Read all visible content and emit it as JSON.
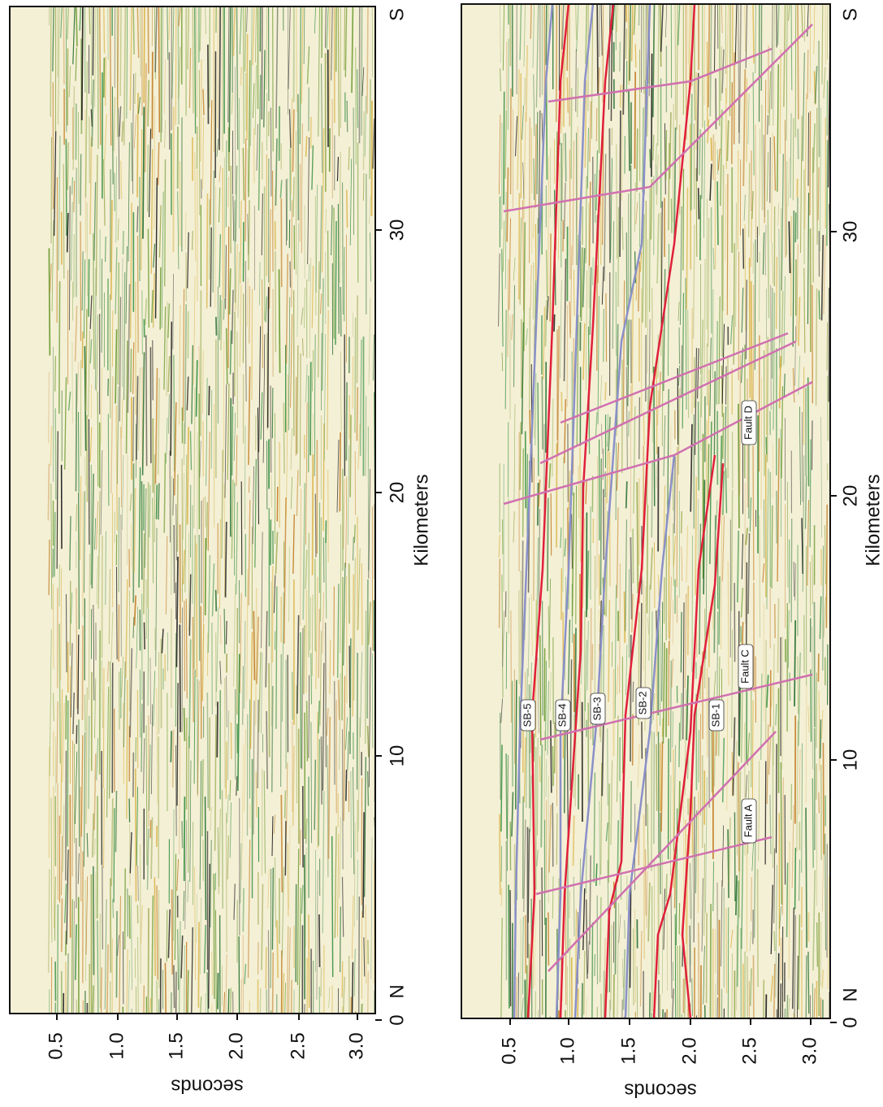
{
  "panels": [
    {
      "seconds_ticks": [
        "0.5",
        "1.0",
        "1.5",
        "2.0",
        "2.5",
        "3.0"
      ],
      "km_ticks": [
        "0",
        "10",
        "20",
        "30"
      ],
      "north": "N",
      "south": "S",
      "x_title": "Kilometers",
      "y_title": "seconds"
    },
    {
      "seconds_ticks": [
        "0.5",
        "1.0",
        "1.5",
        "2.0",
        "2.5",
        "3.0"
      ],
      "km_ticks": [
        "0",
        "10",
        "20",
        "30"
      ],
      "north": "N",
      "south": "S",
      "x_title": "Kilometers",
      "y_title": "seconds",
      "labels": [
        "SB-5",
        "SB-4",
        "SB-3",
        "SB-2",
        "SB-1",
        "Fault A",
        "Fault C",
        "Fault D"
      ]
    }
  ]
}
